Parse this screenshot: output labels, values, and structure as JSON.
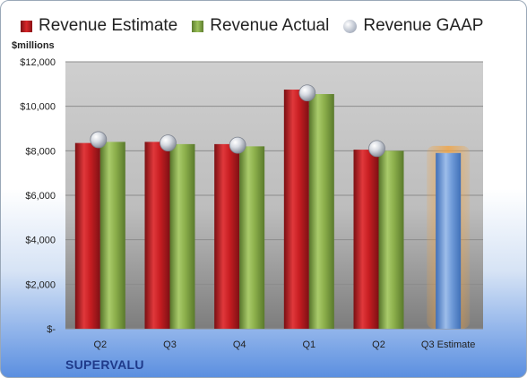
{
  "chart_data": {
    "type": "bar",
    "y_unit_label": "$millions",
    "categories": [
      "Q2",
      "Q3",
      "Q4",
      "Q1",
      "Q2",
      "Q3 Estimate"
    ],
    "series": [
      {
        "name": "Revenue Estimate",
        "color": "#c81e22",
        "values": [
          8350,
          8400,
          8300,
          10750,
          8050,
          null
        ]
      },
      {
        "name": "Revenue Actual",
        "color": "#8db04c",
        "values": [
          8400,
          8300,
          8200,
          10550,
          8000,
          null
        ]
      },
      {
        "name": "Revenue GAAP",
        "color": "#b4bcc9",
        "values": [
          8500,
          8350,
          8250,
          10600,
          8100,
          null
        ]
      }
    ],
    "highlight": {
      "category": "Q3 Estimate",
      "value": 7900,
      "color": "#6e9ad8",
      "glow": "#f5a23a"
    },
    "y_ticks": [
      {
        "value": 0,
        "label": "$-"
      },
      {
        "value": 2000,
        "label": "$2,000"
      },
      {
        "value": 4000,
        "label": "$4,000"
      },
      {
        "value": 6000,
        "label": "$6,000"
      },
      {
        "value": 8000,
        "label": "$8,000"
      },
      {
        "value": 10000,
        "label": "$10,000"
      },
      {
        "value": 12000,
        "label": "$12,000"
      }
    ],
    "ylim": [
      0,
      12000
    ],
    "grid": true,
    "legend_position": "top"
  },
  "company_name": "SUPERVALU"
}
